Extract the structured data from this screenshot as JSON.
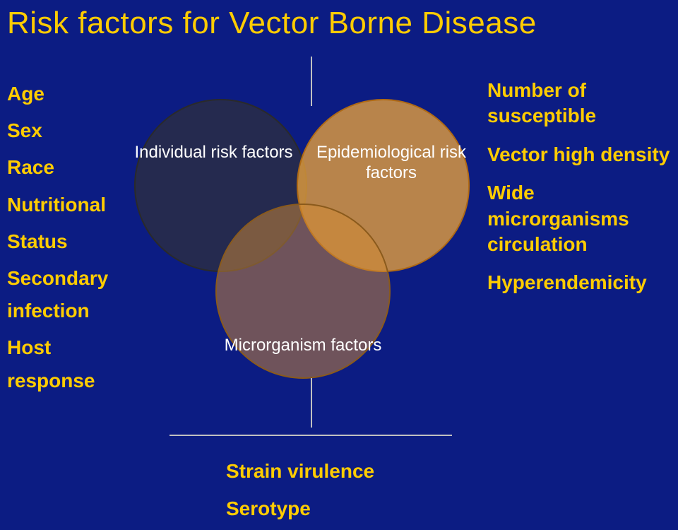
{
  "background_color": "#0c1c83",
  "title": {
    "text": "Risk factors for Vector Borne Disease",
    "color": "#ffcc00",
    "fontsize": 44
  },
  "left_list": {
    "color": "#ffcc00",
    "items": [
      "Age",
      "Sex",
      "Race",
      "Nutritional",
      "Status",
      "Secondary infection",
      "Host response"
    ]
  },
  "right_list": {
    "color": "#ffcc00",
    "items": [
      "Number of susceptible",
      "Vector high density",
      "Wide microrganisms circulation",
      "Hyperendemicity"
    ]
  },
  "bottom_list": {
    "color": "#ffcc00",
    "items": [
      "Strain virulence",
      "Serotype"
    ]
  },
  "venn": {
    "circles": [
      {
        "label": "Individual risk factors",
        "fill": "#333333",
        "fill_opacity": 0.65,
        "stroke": "#2a2a2a"
      },
      {
        "label": "Epidemiological risk factors",
        "fill": "#e9a23b",
        "fill_opacity": 0.78,
        "stroke": "#b06a14"
      },
      {
        "label": "Microrganism factors",
        "fill": "#d18a34",
        "fill_opacity": 0.5,
        "stroke": "#8a5a1c"
      }
    ],
    "label_color": "#ffffff",
    "label_fontsize": 24
  },
  "divider_color": "#c0c0c0"
}
